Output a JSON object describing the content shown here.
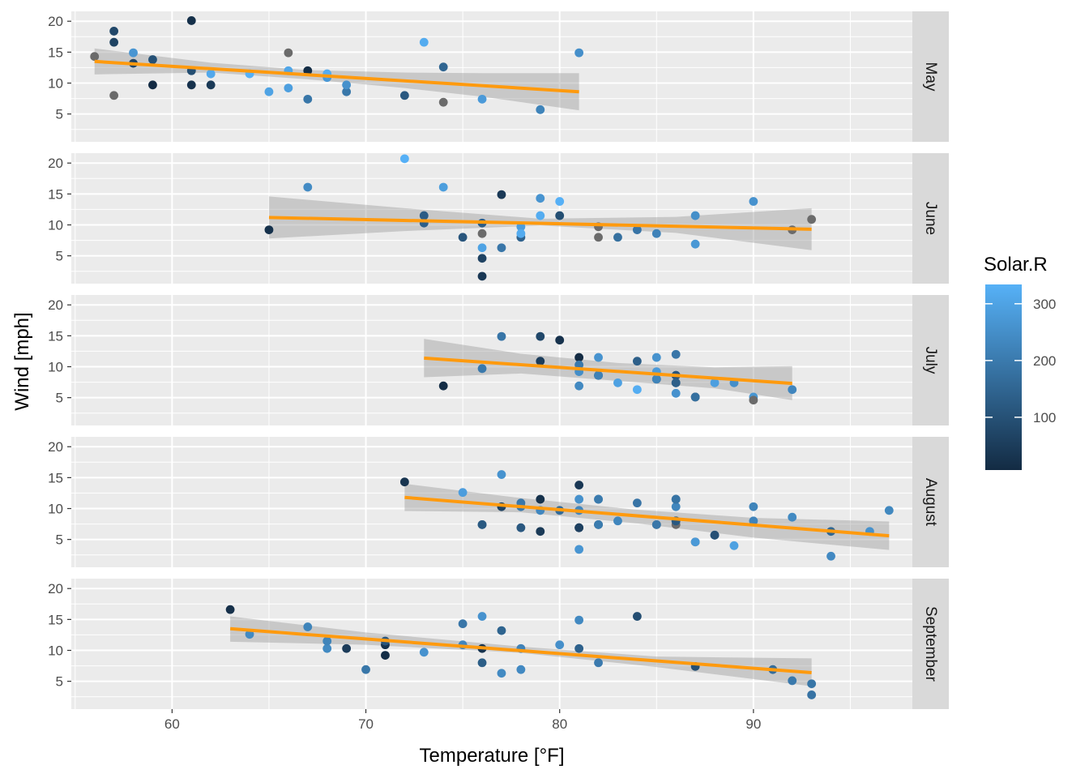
{
  "chart_data": {
    "type": "scatter",
    "xlabel": "Temperature [°F]",
    "ylabel": "Wind [mph]",
    "xlim": [
      54.8,
      98.2
    ],
    "ylim": [
      0.5,
      21.6
    ],
    "x_ticks": [
      60,
      70,
      80,
      90
    ],
    "x_tick_labels": [
      "60",
      "70",
      "80",
      "90"
    ],
    "y_ticks": [
      5,
      10,
      15,
      20
    ],
    "y_tick_labels": [
      "5",
      "10",
      "15",
      "20"
    ],
    "grid": true,
    "facet_by": "Month",
    "legend": {
      "title": "Solar.R",
      "placement": "right",
      "type": "colorbar",
      "range": [
        7,
        334
      ],
      "ticks": [
        100,
        200,
        300
      ],
      "tick_labels": [
        "100",
        "200",
        "300"
      ],
      "low_color": "#132B43",
      "high_color": "#56B1F7",
      "na_color": "#6B6B6B"
    },
    "trend_color": "#FF9A0E",
    "band_color": "#999999",
    "panel_background": "#EBEBEB",
    "strip_background": "#D9D9D9",
    "panels": [
      {
        "label": "May",
        "trend": {
          "x0": 56,
          "y0": 13.5,
          "x1": 81,
          "y1": 8.6
        },
        "band": [
          [
            56,
            15.6,
            11.4
          ],
          [
            62,
            13.3,
            11.7
          ],
          [
            67,
            12.1,
            10.6
          ],
          [
            72,
            11.7,
            9.2
          ],
          [
            76,
            11.6,
            7.8
          ],
          [
            81,
            11.6,
            5.6
          ]
        ],
        "points": [
          {
            "x": 67,
            "y": 7.4,
            "c": 190
          },
          {
            "x": 72,
            "y": 8.0,
            "c": 118
          },
          {
            "x": 74,
            "y": 12.6,
            "c": 149
          },
          {
            "x": 62,
            "y": 11.5,
            "c": 313
          },
          {
            "x": 56,
            "y": 14.3,
            "c": null
          },
          {
            "x": 66,
            "y": 14.9,
            "c": null
          },
          {
            "x": 65,
            "y": 8.6,
            "c": 299
          },
          {
            "x": 59,
            "y": 13.8,
            "c": 99
          },
          {
            "x": 61,
            "y": 20.1,
            "c": 19
          },
          {
            "x": 69,
            "y": 8.6,
            "c": 194
          },
          {
            "x": 74,
            "y": 6.9,
            "c": null
          },
          {
            "x": 69,
            "y": 9.7,
            "c": 256
          },
          {
            "x": 66,
            "y": 9.2,
            "c": 290
          },
          {
            "x": 68,
            "y": 10.9,
            "c": 274
          },
          {
            "x": 58,
            "y": 13.2,
            "c": 65
          },
          {
            "x": 64,
            "y": 11.5,
            "c": 334
          },
          {
            "x": 66,
            "y": 12.0,
            "c": 307
          },
          {
            "x": 57,
            "y": 18.4,
            "c": 78
          },
          {
            "x": 68,
            "y": 11.5,
            "c": 322
          },
          {
            "x": 62,
            "y": 9.7,
            "c": 44
          },
          {
            "x": 59,
            "y": 9.7,
            "c": 8
          },
          {
            "x": 73,
            "y": 16.6,
            "c": 320
          },
          {
            "x": 61,
            "y": 9.7,
            "c": 25
          },
          {
            "x": 61,
            "y": 12.0,
            "c": 92
          },
          {
            "x": 57,
            "y": 16.6,
            "c": 66
          },
          {
            "x": 58,
            "y": 14.9,
            "c": 266
          },
          {
            "x": 57,
            "y": 8.0,
            "c": null
          },
          {
            "x": 67,
            "y": 12.0,
            "c": 13
          },
          {
            "x": 81,
            "y": 14.9,
            "c": 252
          },
          {
            "x": 79,
            "y": 5.7,
            "c": 223
          },
          {
            "x": 76,
            "y": 7.4,
            "c": 279
          }
        ]
      },
      {
        "label": "June",
        "trend": {
          "x0": 65,
          "y0": 11.2,
          "x1": 93,
          "y1": 9.3
        },
        "band": [
          [
            65,
            14.6,
            7.8
          ],
          [
            72,
            12.7,
            9.0
          ],
          [
            79,
            11.0,
            9.9
          ],
          [
            86,
            11.3,
            8.7
          ],
          [
            93,
            12.7,
            5.9
          ]
        ],
        "points": [
          {
            "x": 76,
            "y": 8.6,
            "c": null
          },
          {
            "x": 78,
            "y": 9.7,
            "c": 286
          },
          {
            "x": 74,
            "y": 16.1,
            "c": 287
          },
          {
            "x": 67,
            "y": 16.1,
            "c": 242
          },
          {
            "x": 84,
            "y": 9.2,
            "c": 186
          },
          {
            "x": 85,
            "y": 8.6,
            "c": 220
          },
          {
            "x": 79,
            "y": 14.3,
            "c": 264
          },
          {
            "x": 82,
            "y": 9.7,
            "c": null
          },
          {
            "x": 87,
            "y": 6.9,
            "c": 273
          },
          {
            "x": 90,
            "y": 13.8,
            "c": 259
          },
          {
            "x": 87,
            "y": 11.5,
            "c": 250
          },
          {
            "x": 93,
            "y": 10.9,
            "c": null
          },
          {
            "x": 92,
            "y": 9.2,
            "c": null
          },
          {
            "x": 82,
            "y": 8.0,
            "c": null
          },
          {
            "x": 80,
            "y": 13.8,
            "c": 332
          },
          {
            "x": 79,
            "y": 11.5,
            "c": 322
          },
          {
            "x": 77,
            "y": 14.9,
            "c": 44
          },
          {
            "x": 72,
            "y": 20.7,
            "c": 332
          },
          {
            "x": 65,
            "y": 9.2,
            "c": 24
          },
          {
            "x": 73,
            "y": 11.5,
            "c": 127
          },
          {
            "x": 76,
            "y": 10.3,
            "c": 127
          },
          {
            "x": 77,
            "y": 6.3,
            "c": 191
          },
          {
            "x": 76,
            "y": 1.7,
            "c": 37
          },
          {
            "x": 76,
            "y": 4.6,
            "c": 64
          },
          {
            "x": 75,
            "y": 8.0,
            "c": 110
          },
          {
            "x": 78,
            "y": 8.0,
            "c": 142
          },
          {
            "x": 73,
            "y": 10.3,
            "c": 135
          },
          {
            "x": 80,
            "y": 11.5,
            "c": 92
          },
          {
            "x": 76,
            "y": 6.3,
            "c": 299
          },
          {
            "x": 83,
            "y": 8.0,
            "c": 175
          },
          {
            "x": 78,
            "y": 8.6,
            "c": 319
          }
        ]
      },
      {
        "label": "July",
        "trend": {
          "x0": 73,
          "y0": 11.4,
          "x1": 92,
          "y1": 7.3
        },
        "band": [
          [
            73,
            14.5,
            8.3
          ],
          [
            78,
            12.1,
            8.9
          ],
          [
            83,
            10.6,
            7.7
          ],
          [
            88,
            9.9,
            6.5
          ],
          [
            92,
            10.1,
            4.6
          ]
        ],
        "points": [
          {
            "x": 84,
            "y": 10.9,
            "c": 135
          },
          {
            "x": 85,
            "y": 8.0,
            "c": 49
          },
          {
            "x": 81,
            "y": 11.5,
            "c": 7
          },
          {
            "x": 84,
            "y": 6.3,
            "c": 325
          },
          {
            "x": 87,
            "y": 5.1,
            "c": 48
          },
          {
            "x": 85,
            "y": 11.5,
            "c": 260
          },
          {
            "x": 74,
            "y": 6.9,
            "c": 13
          },
          {
            "x": 86,
            "y": 8.6,
            "c": 148
          },
          {
            "x": 85,
            "y": 8.0,
            "c": 223
          },
          {
            "x": 82,
            "y": 8.6,
            "c": 87
          },
          {
            "x": 86,
            "y": 12.0,
            "c": 191
          },
          {
            "x": 88,
            "y": 7.4,
            "c": 291
          },
          {
            "x": 86,
            "y": 7.4,
            "c": 139
          },
          {
            "x": 83,
            "y": 7.4,
            "c": 295
          },
          {
            "x": 81,
            "y": 9.2,
            "c": 248
          },
          {
            "x": 81,
            "y": 6.9,
            "c": 236
          },
          {
            "x": 81,
            "y": 10.3,
            "c": 198
          },
          {
            "x": 82,
            "y": 11.5,
            "c": 262
          },
          {
            "x": 86,
            "y": 8.6,
            "c": 110
          },
          {
            "x": 85,
            "y": 9.2,
            "c": 279
          },
          {
            "x": 87,
            "y": 5.1,
            "c": 175
          },
          {
            "x": 89,
            "y": 7.4,
            "c": 252
          },
          {
            "x": 90,
            "y": 5.1,
            "c": 267
          },
          {
            "x": 90,
            "y": 4.6,
            "c": null
          },
          {
            "x": 92,
            "y": 6.3,
            "c": 230
          },
          {
            "x": 86,
            "y": 5.7,
            "c": 259
          },
          {
            "x": 86,
            "y": 7.4,
            "c": 135
          },
          {
            "x": 82,
            "y": 8.6,
            "c": 216
          },
          {
            "x": 80,
            "y": 14.3,
            "c": 25
          },
          {
            "x": 79,
            "y": 14.9,
            "c": 77
          },
          {
            "x": 77,
            "y": 14.9,
            "c": 188
          },
          {
            "x": 79,
            "y": 10.9,
            "c": 51
          },
          {
            "x": 76,
            "y": 9.7,
            "c": 197
          }
        ]
      },
      {
        "label": "August",
        "trend": {
          "x0": 72,
          "y0": 11.8,
          "x1": 97,
          "y1": 5.6
        },
        "band": [
          [
            72,
            14.0,
            9.6
          ],
          [
            78,
            11.7,
            9.4
          ],
          [
            84,
            9.8,
            7.6
          ],
          [
            90,
            8.5,
            5.3
          ],
          [
            97,
            7.9,
            3.3
          ]
        ],
        "points": [
          {
            "x": 78,
            "y": 6.9,
            "c": 118
          },
          {
            "x": 81,
            "y": 13.8,
            "c": 37
          },
          {
            "x": 76,
            "y": 7.4,
            "c": 140
          },
          {
            "x": 82,
            "y": 7.4,
            "c": 59
          },
          {
            "x": 84,
            "y": 10.9,
            "c": 186
          },
          {
            "x": 87,
            "y": 4.6,
            "c": null
          },
          {
            "x": 85,
            "y": 7.4,
            "c": null
          },
          {
            "x": 81,
            "y": 11.5,
            "c": 255
          },
          {
            "x": 82,
            "y": 11.5,
            "c": 270
          },
          {
            "x": 86,
            "y": 10.3,
            "c": 229
          },
          {
            "x": 88,
            "y": 5.7,
            "c": 197
          },
          {
            "x": 86,
            "y": 7.4,
            "c": null
          },
          {
            "x": 83,
            "y": 8.0,
            "c": 229
          },
          {
            "x": 81,
            "y": 6.9,
            "c": 24
          },
          {
            "x": 81,
            "y": 9.7,
            "c": 230
          },
          {
            "x": 81,
            "y": 3.4,
            "c": 266
          },
          {
            "x": 82,
            "y": 7.4,
            "c": 204
          },
          {
            "x": 86,
            "y": 8.0,
            "c": 167
          },
          {
            "x": 85,
            "y": 7.4,
            "c": 193
          },
          {
            "x": 87,
            "y": 4.6,
            "c": 275
          },
          {
            "x": 89,
            "y": 4.0,
            "c": 294
          },
          {
            "x": 90,
            "y": 10.3,
            "c": 223
          },
          {
            "x": 90,
            "y": 8.0,
            "c": 225
          },
          {
            "x": 92,
            "y": 8.6,
            "c": 238
          },
          {
            "x": 86,
            "y": 11.5,
            "c": 175
          },
          {
            "x": 86,
            "y": 11.5,
            "c": 184
          },
          {
            "x": 82,
            "y": 11.5,
            "c": 199
          },
          {
            "x": 80,
            "y": 9.7,
            "c": 162
          },
          {
            "x": 79,
            "y": 11.5,
            "c": 24
          },
          {
            "x": 77,
            "y": 10.3,
            "c": 63
          },
          {
            "x": 79,
            "y": 6.3,
            "c": 44
          },
          {
            "x": 76,
            "y": 7.4,
            "c": 121
          },
          {
            "x": 78,
            "y": 10.9,
            "c": 193
          },
          {
            "x": 78,
            "y": 10.3,
            "c": 198
          },
          {
            "x": 77,
            "y": 15.5,
            "c": 261
          },
          {
            "x": 72,
            "y": 14.3,
            "c": 31
          },
          {
            "x": 75,
            "y": 12.6,
            "c": 286
          },
          {
            "x": 79,
            "y": 9.7,
            "c": 232
          },
          {
            "x": 81,
            "y": 6.9,
            "c": 59
          },
          {
            "x": 86,
            "y": 8.0,
            "c": 120
          },
          {
            "x": 88,
            "y": 5.7,
            "c": 98
          },
          {
            "x": 97,
            "y": 9.7,
            "c": 233
          },
          {
            "x": 94,
            "y": 2.3,
            "c": 237
          },
          {
            "x": 96,
            "y": 6.3,
            "c": 255
          },
          {
            "x": 94,
            "y": 6.3,
            "c": 153
          }
        ]
      },
      {
        "label": "September",
        "trend": {
          "x0": 63,
          "y0": 13.5,
          "x1": 93,
          "y1": 6.4
        },
        "band": [
          [
            63,
            15.5,
            11.4
          ],
          [
            70,
            12.9,
            10.9
          ],
          [
            78,
            10.6,
            9.6
          ],
          [
            85,
            9.0,
            7.3
          ],
          [
            93,
            8.7,
            4.2
          ]
        ],
        "points": [
          {
            "x": 91,
            "y": 6.9,
            "c": 167
          },
          {
            "x": 92,
            "y": 5.1,
            "c": 197
          },
          {
            "x": 93,
            "y": 2.8,
            "c": 183
          },
          {
            "x": 93,
            "y": 4.6,
            "c": 189
          },
          {
            "x": 87,
            "y": 7.4,
            "c": 95
          },
          {
            "x": 84,
            "y": 15.5,
            "c": 92
          },
          {
            "x": 80,
            "y": 10.9,
            "c": 252
          },
          {
            "x": 78,
            "y": 10.3,
            "c": 220
          },
          {
            "x": 75,
            "y": 10.9,
            "c": 230
          },
          {
            "x": 73,
            "y": 9.7,
            "c": 259
          },
          {
            "x": 81,
            "y": 14.9,
            "c": 236
          },
          {
            "x": 76,
            "y": 15.5,
            "c": 259
          },
          {
            "x": 77,
            "y": 6.3,
            "c": 238
          },
          {
            "x": 71,
            "y": 10.9,
            "c": 24
          },
          {
            "x": 71,
            "y": 11.5,
            "c": 112
          },
          {
            "x": 78,
            "y": 6.9,
            "c": 237
          },
          {
            "x": 67,
            "y": 13.8,
            "c": 224
          },
          {
            "x": 76,
            "y": 10.3,
            "c": 27
          },
          {
            "x": 68,
            "y": 10.3,
            "c": 238
          },
          {
            "x": 82,
            "y": 8.0,
            "c": 201
          },
          {
            "x": 64,
            "y": 12.6,
            "c": 238
          },
          {
            "x": 71,
            "y": 9.2,
            "c": 14
          },
          {
            "x": 81,
            "y": 10.3,
            "c": 139
          },
          {
            "x": 69,
            "y": 10.3,
            "c": 49
          },
          {
            "x": 63,
            "y": 16.6,
            "c": 20
          },
          {
            "x": 70,
            "y": 6.9,
            "c": 193
          },
          {
            "x": 77,
            "y": 13.2,
            "c": 145
          },
          {
            "x": 75,
            "y": 14.3,
            "c": 191
          },
          {
            "x": 76,
            "y": 8.0,
            "c": 131
          },
          {
            "x": 68,
            "y": 11.5,
            "c": 223
          }
        ]
      }
    ]
  }
}
